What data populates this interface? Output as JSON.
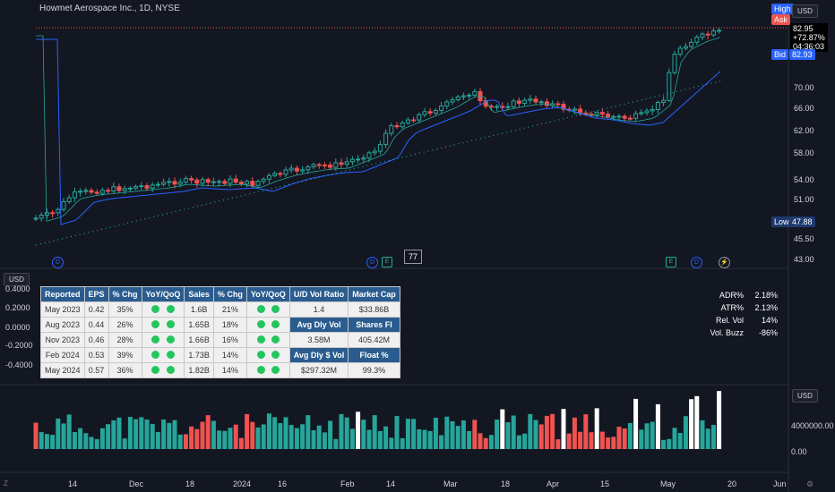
{
  "header": {
    "title": "Howmet Aerospace Inc., 1D, NYSE"
  },
  "price_axis": {
    "currency": "USD",
    "ticks": [
      "70.00",
      "66.00",
      "62.00",
      "58.00",
      "54.00",
      "51.00",
      "45.50",
      "43.00"
    ],
    "high_label": "High",
    "ask_label": "Ask",
    "bid_label": "Bid",
    "bid_value": "82.93",
    "low_label": "Low",
    "low_value": "47.88",
    "last_price": "82.95",
    "change": "+72.87%",
    "countdown": "04:36:03"
  },
  "indicator_axis": {
    "currency": "USD",
    "ticks": [
      "0.4000",
      "0.2000",
      "0.0000",
      "-0.2000",
      "-0.4000"
    ]
  },
  "volume_axis": {
    "currency": "USD",
    "ticks": [
      "4000000.00",
      "0.00"
    ]
  },
  "time_axis": {
    "labels": [
      "14",
      "Dec",
      "18",
      "2024",
      "16",
      "Feb",
      "14",
      "Mar",
      "18",
      "Apr",
      "15",
      "May",
      "20",
      "Jun"
    ]
  },
  "badge_value": "77",
  "fundamentals": {
    "headers": [
      "Reported",
      "EPS",
      "% Chg",
      "YoY/QoQ",
      "Sales",
      "% Chg",
      "YoY/QoQ"
    ],
    "rows": [
      {
        "reported": "May 2023",
        "eps": "0.42",
        "eps_chg": "35%",
        "sales": "1.6B",
        "sales_chg": "21%"
      },
      {
        "reported": "Aug 2023",
        "eps": "0.44",
        "eps_chg": "26%",
        "sales": "1.65B",
        "sales_chg": "18%"
      },
      {
        "reported": "Nov 2023",
        "eps": "0.46",
        "eps_chg": "28%",
        "sales": "1.66B",
        "sales_chg": "16%"
      },
      {
        "reported": "Feb 2024",
        "eps": "0.53",
        "eps_chg": "39%",
        "sales": "1.73B",
        "sales_chg": "14%"
      },
      {
        "reported": "May 2024",
        "eps": "0.57",
        "eps_chg": "36%",
        "sales": "1.82B",
        "sales_chg": "14%"
      }
    ],
    "side": {
      "ud_label": "U/D Vol Ratio",
      "ud_value": "1.4",
      "mcap_label": "Market Cap",
      "mcap_value": "$33.86B",
      "adv_label": "Avg Dly Vol",
      "adv_value": "3.58M",
      "sf_label": "Shares Fl",
      "sf_value": "405.42M",
      "adsv_label": "Avg Dly $ Vol",
      "adsv_value": "$297.32M",
      "float_label": "Float %",
      "float_value": "99.3%"
    }
  },
  "stats": [
    {
      "k": "ADR%",
      "v": "2.18%"
    },
    {
      "k": "ATR%",
      "v": "2.13%"
    },
    {
      "k": "Rel. Vol",
      "v": "14%"
    },
    {
      "k": "Vol. Buzz",
      "v": "-86%"
    }
  ],
  "colors": {
    "up": "#26a69a",
    "down": "#ef5350",
    "bg": "#131722",
    "ma_fast": "#26a69a",
    "ma_slow": "#2962ff",
    "header_blue": "#2a5c8f"
  }
}
